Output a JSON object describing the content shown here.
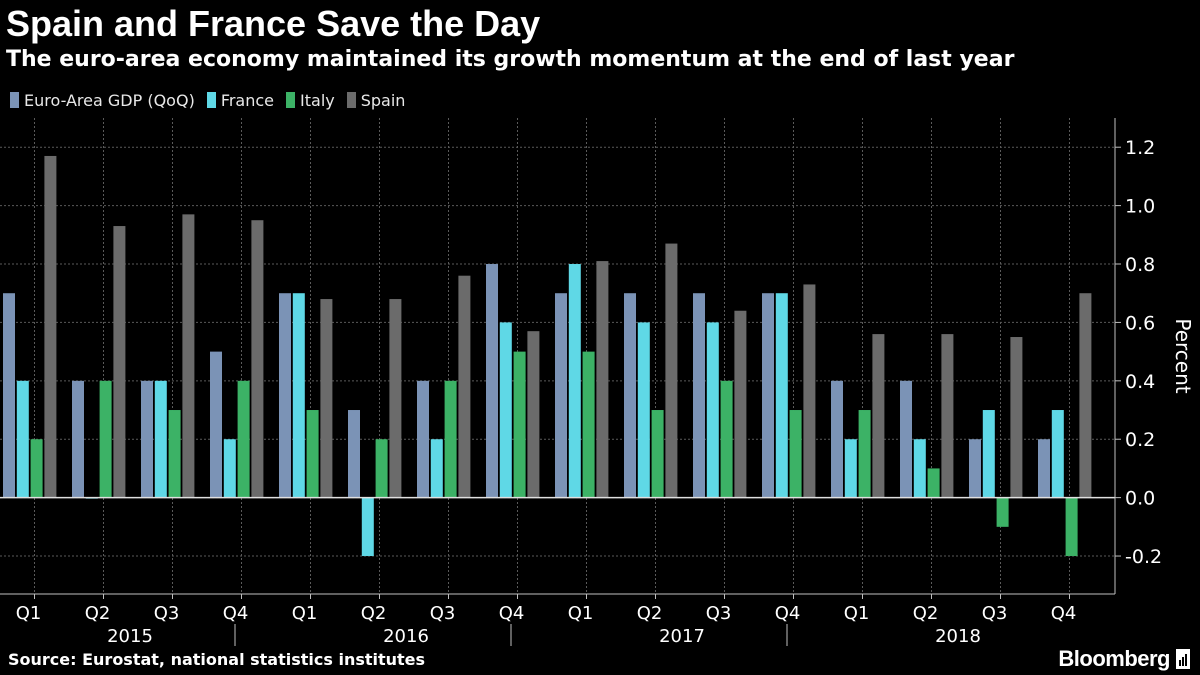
{
  "header": {
    "title": "Spain and France Save the Day",
    "subtitle": "The euro-area economy maintained its growth momentum at the end of last year"
  },
  "footer": {
    "source": "Source: Eurostat, national statistics institutes",
    "brand": "Bloomberg"
  },
  "colors": {
    "background": "#000000",
    "grid": "#5a5a5a",
    "axis": "#bfbfbf"
  },
  "chart_data": {
    "type": "bar",
    "title": "Spain and France Save the Day",
    "subtitle": "The euro-area economy maintained its growth momentum at the end of last year",
    "ylabel": "Percent",
    "ylim": [
      -0.33,
      1.3
    ],
    "yticks": [
      -0.2,
      0.0,
      0.2,
      0.4,
      0.6,
      0.8,
      1.0,
      1.2
    ],
    "ytick_labels": [
      "-0.2",
      "0.0",
      "0.2",
      "0.4",
      "0.6",
      "0.8",
      "1.0",
      "1.2"
    ],
    "y_axis_side": "right",
    "legend_position": "top-left",
    "grid": true,
    "categories": [
      "Q1",
      "Q2",
      "Q3",
      "Q4",
      "Q1",
      "Q2",
      "Q3",
      "Q4",
      "Q1",
      "Q2",
      "Q3",
      "Q4",
      "Q1",
      "Q2",
      "Q3",
      "Q4"
    ],
    "year_groups": [
      {
        "label": "2015",
        "start": 0,
        "end": 3
      },
      {
        "label": "2016",
        "start": 4,
        "end": 7
      },
      {
        "label": "2017",
        "start": 8,
        "end": 11
      },
      {
        "label": "2018",
        "start": 12,
        "end": 15
      }
    ],
    "series": [
      {
        "name": "Euro-Area GDP (QoQ)",
        "color": "#7b93b6",
        "values": [
          0.7,
          0.4,
          0.4,
          0.5,
          0.7,
          0.3,
          0.4,
          0.8,
          0.7,
          0.7,
          0.7,
          0.7,
          0.4,
          0.4,
          0.2,
          0.2
        ]
      },
      {
        "name": "France",
        "color": "#5fd8e6",
        "values": [
          0.4,
          0.0,
          0.4,
          0.2,
          0.7,
          -0.2,
          0.2,
          0.6,
          0.8,
          0.6,
          0.6,
          0.7,
          0.2,
          0.2,
          0.3,
          0.3
        ]
      },
      {
        "name": "Italy",
        "color": "#3cb266",
        "values": [
          0.2,
          0.4,
          0.3,
          0.4,
          0.3,
          0.2,
          0.4,
          0.5,
          0.5,
          0.3,
          0.4,
          0.3,
          0.3,
          0.1,
          -0.1,
          -0.2
        ]
      },
      {
        "name": "Spain",
        "color": "#6b6b6b",
        "values": [
          1.17,
          0.93,
          0.97,
          0.95,
          0.68,
          0.68,
          0.76,
          0.57,
          0.81,
          0.87,
          0.64,
          0.73,
          0.56,
          0.56,
          0.55,
          0.7
        ]
      }
    ]
  }
}
